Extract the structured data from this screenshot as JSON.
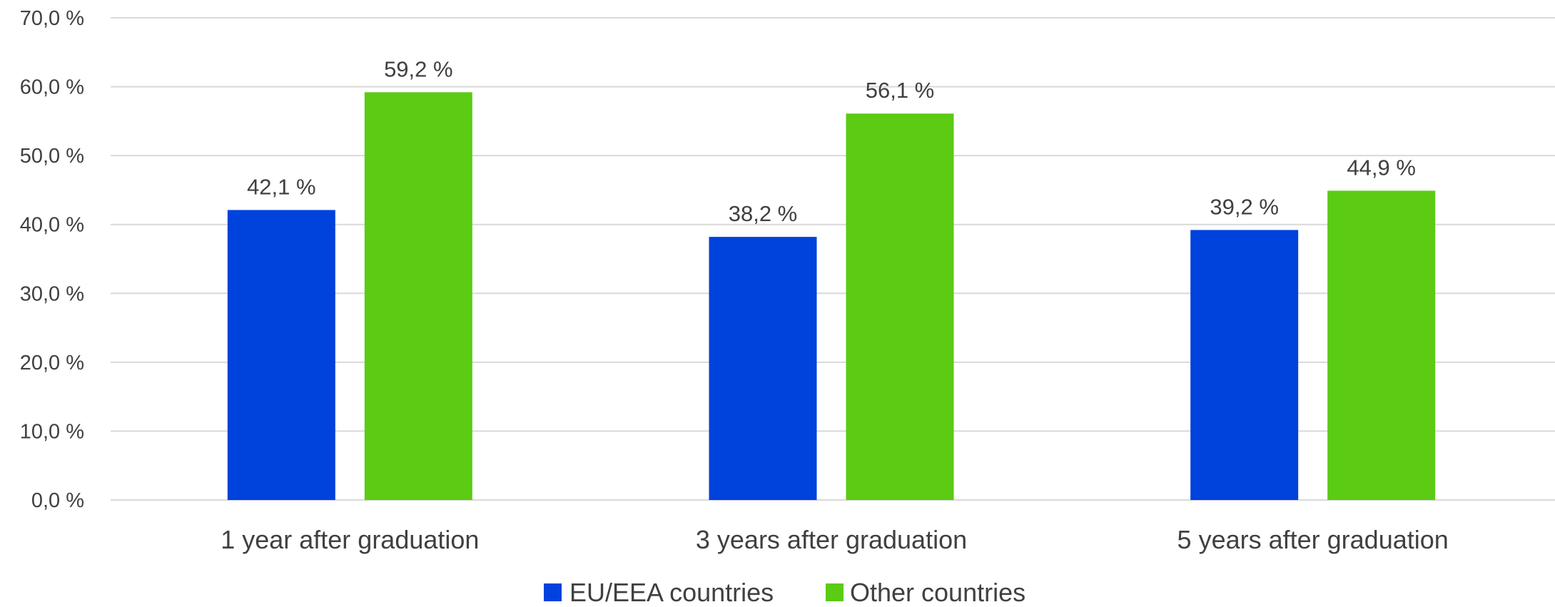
{
  "chart_data": {
    "type": "bar",
    "categories": [
      "1 year after graduation",
      "3 years after graduation",
      "5 years after graduation"
    ],
    "series": [
      {
        "name": "EU/EEA countries",
        "color": "#0042dc",
        "values": [
          42.1,
          38.2,
          39.2
        ],
        "labels": [
          "42,1 %",
          "38,2 %",
          "39,2 %"
        ]
      },
      {
        "name": "Other countries",
        "color": "#5bcb14",
        "values": [
          59.2,
          56.1,
          44.9
        ],
        "labels": [
          "59,2 %",
          "56,1 %",
          "44,9 %"
        ]
      }
    ],
    "ylim": [
      0,
      70
    ],
    "yticks": [
      0,
      10,
      20,
      30,
      40,
      50,
      60,
      70
    ],
    "ytick_labels": [
      "0,0 %",
      "10,0 %",
      "20,0 %",
      "30,0 %",
      "40,0 %",
      "50,0 %",
      "60,0 %",
      "70,0 %"
    ],
    "grid": true,
    "legend_position": "bottom",
    "title": "",
    "xlabel": "",
    "ylabel": ""
  }
}
